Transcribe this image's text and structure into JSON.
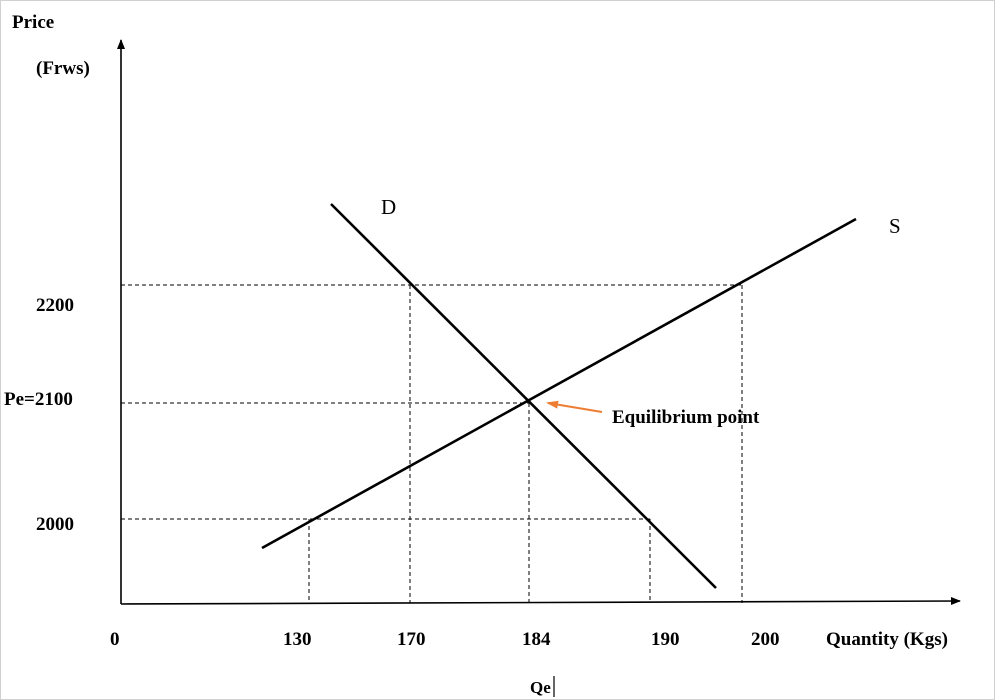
{
  "chart_data": {
    "type": "line",
    "title": "",
    "ylabel_line1": "Price",
    "ylabel_line2": "(Frws)",
    "xlabel": "Quantity (Kgs)",
    "x_ticks": [
      "0",
      "130",
      "170",
      "184",
      "190",
      "200"
    ],
    "y_ticks": [
      "2200",
      "Pe=2100",
      "2000"
    ],
    "series": [
      {
        "name": "D",
        "points": [
          [
            150,
            2340
          ],
          [
            170,
            2200
          ],
          [
            184,
            2100
          ],
          [
            190,
            2000
          ],
          [
            205,
            1900
          ]
        ]
      },
      {
        "name": "S",
        "points": [
          [
            118,
            1980
          ],
          [
            130,
            2000
          ],
          [
            184,
            2100
          ],
          [
            200,
            2200
          ],
          [
            215,
            2280
          ]
        ]
      }
    ],
    "guides": [
      {
        "from": [
          0,
          2200
        ],
        "to": [
          200,
          2200
        ]
      },
      {
        "from": [
          0,
          2100
        ],
        "to": [
          184,
          2100
        ]
      },
      {
        "from": [
          0,
          2000
        ],
        "to": [
          190,
          2000
        ]
      },
      {
        "from": [
          130,
          2000
        ],
        "to": [
          130,
          0
        ]
      },
      {
        "from": [
          170,
          2200
        ],
        "to": [
          170,
          0
        ]
      },
      {
        "from": [
          184,
          2100
        ],
        "to": [
          184,
          0
        ]
      },
      {
        "from": [
          190,
          2000
        ],
        "to": [
          190,
          0
        ]
      },
      {
        "from": [
          200,
          2200
        ],
        "to": [
          200,
          0
        ]
      }
    ],
    "annotation": {
      "text": "Equilibrium point",
      "point": [
        184,
        2100
      ],
      "arrow_color": "#ed7d31"
    },
    "qe_label": "Qe",
    "curve_labels": [
      "D",
      "S"
    ]
  }
}
